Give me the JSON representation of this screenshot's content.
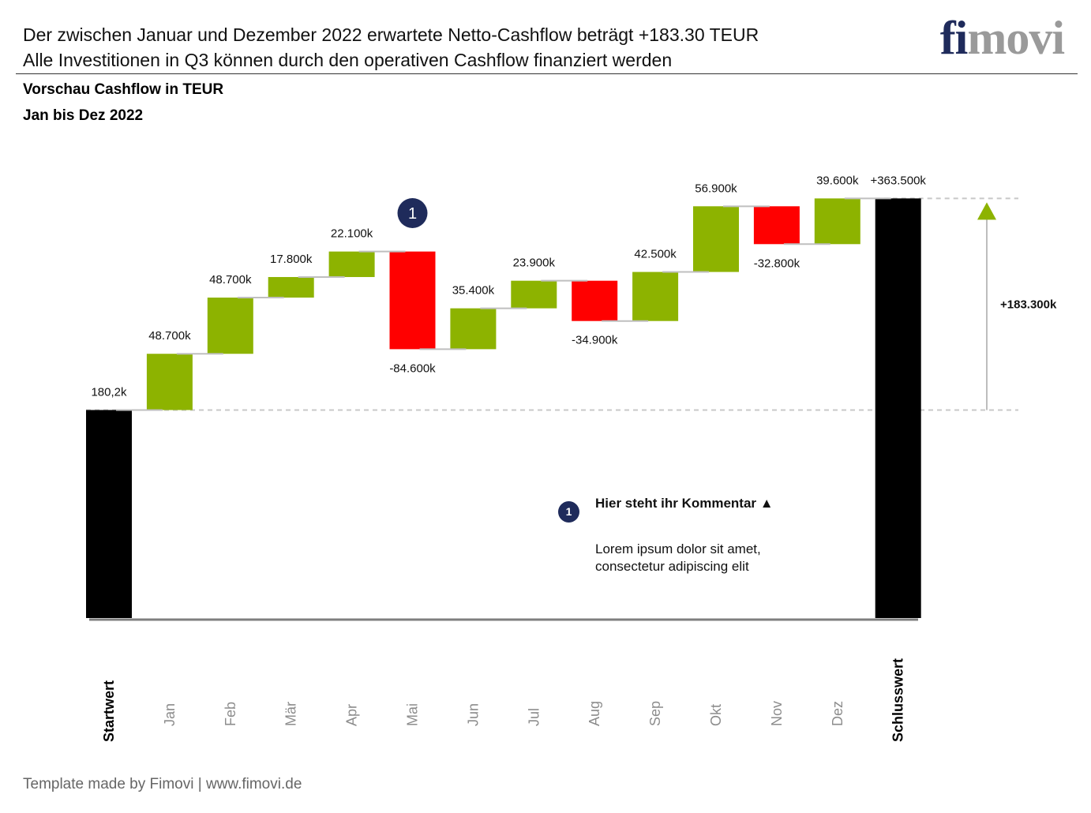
{
  "header": {
    "headline_1": "Der zwischen Januar und Dezember 2022 erwartete Netto-Cashflow beträgt +183.30 TEUR",
    "headline_2": "Alle Investitionen in Q3 können durch den operativen Cashflow finanziert werden",
    "logo_part_1": "fi",
    "logo_part_2": "movi"
  },
  "chart_title": "Vorschau Cashflow in TEUR",
  "chart_subtitle": "Jan bis Dez 2022",
  "chart_data": {
    "type": "waterfall",
    "categories": [
      "Startwert",
      "Jan",
      "Feb",
      "Mär",
      "Apr",
      "Mai",
      "Jun",
      "Jul",
      "Aug",
      "Sep",
      "Okt",
      "Nov",
      "Dez",
      "Schlusswert"
    ],
    "values": [
      180.2,
      48.7,
      48.7,
      17.8,
      22.1,
      -84.6,
      35.4,
      23.9,
      -34.9,
      42.5,
      56.9,
      -32.8,
      39.6,
      363.5
    ],
    "kinds": [
      "total",
      "delta",
      "delta",
      "delta",
      "delta",
      "delta",
      "delta",
      "delta",
      "delta",
      "delta",
      "delta",
      "delta",
      "delta",
      "total"
    ],
    "labels": [
      "180,2k",
      "48.700k",
      "48.700k",
      "17.800k",
      "22.100k",
      "-84.600k",
      "35.400k",
      "23.900k",
      "-34.900k",
      "42.500k",
      "56.900k",
      "-32.800k",
      "39.600k",
      "+363.500k"
    ],
    "bold_categories": [
      "Startwert",
      "Schlusswert"
    ],
    "difference_label": "+183.300k",
    "marker": {
      "category": "Mai",
      "text": "1"
    },
    "colors": {
      "total": "#000000",
      "positive": "#8db300",
      "negative": "#ff0000",
      "connector": "#bfbfbf",
      "marker": "#1f2b5b",
      "arrow_head": "#8db300"
    },
    "y_baseline": 0
  },
  "comment": {
    "badge": "1",
    "title": "Hier steht ihr Kommentar ▲",
    "line_1": "Lorem ipsum dolor sit amet,",
    "line_2": "consectetur adipiscing elit"
  },
  "footer": "Template made by Fimovi  |  www.fimovi.de"
}
